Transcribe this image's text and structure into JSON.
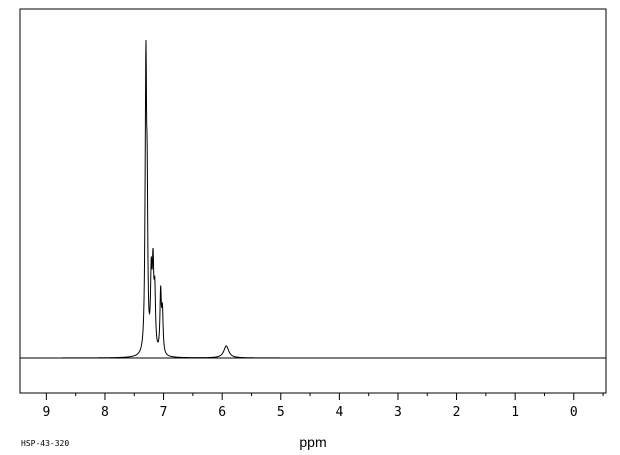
{
  "chart_data": {
    "type": "line",
    "title": "",
    "xlabel": "ppm",
    "ylabel": "",
    "xlim": [
      9.45,
      -0.55
    ],
    "x_axis_reversed": true,
    "x_ticks": [
      "9",
      "8",
      "7",
      "6",
      "5",
      "4",
      "3",
      "2",
      "1",
      "0"
    ],
    "grid": false,
    "legend": "none",
    "sample_code": "HSP-43-320",
    "line_color": "#000000",
    "series": [
      {
        "peaks": [
          {
            "ppm": 7.3,
            "height": 1.0,
            "width": 0.012
          },
          {
            "ppm": 7.28,
            "height": 0.62,
            "width": 0.012
          },
          {
            "ppm": 7.31,
            "height": 0.4,
            "width": 0.015
          },
          {
            "ppm": 7.21,
            "height": 0.33,
            "width": 0.015
          },
          {
            "ppm": 7.18,
            "height": 0.36,
            "width": 0.015
          },
          {
            "ppm": 7.15,
            "height": 0.26,
            "width": 0.015
          },
          {
            "ppm": 7.05,
            "height": 0.28,
            "width": 0.014
          },
          {
            "ppm": 7.02,
            "height": 0.19,
            "width": 0.014
          },
          {
            "ppm": 5.93,
            "height": 0.055,
            "width": 0.05
          }
        ]
      }
    ]
  }
}
